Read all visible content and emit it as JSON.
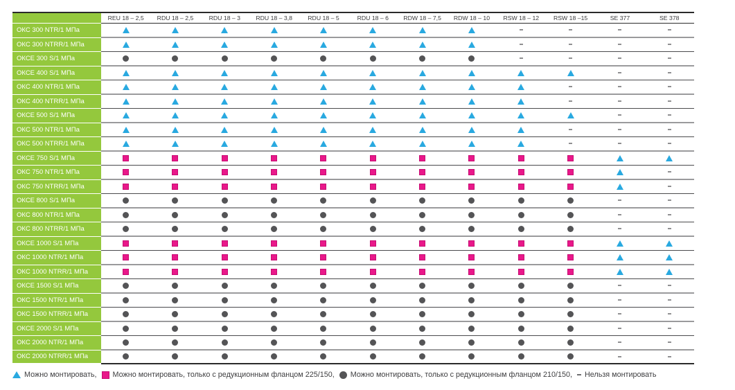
{
  "colors": {
    "row_header_green": "#94c83d",
    "triangle_blue": "#29a9e0",
    "square_magenta": "#e9188a",
    "circle_gray": "#545456",
    "header_text": "#3a3a3c",
    "legend_text": "#3e3e40"
  },
  "symbol_names": {
    "t": "triangle",
    "s": "square",
    "c": "circle",
    "-": "dash"
  },
  "table": {
    "columns": [
      "REU 18 – 2,5",
      "RDU 18 – 2,5",
      "RDU 18 – 3",
      "RDU 18 – 3,8",
      "RDU 18 – 5",
      "RDU 18 – 6",
      "RDW 18 – 7,5",
      "RDW 18 – 10",
      "RSW 18 – 12",
      "RSW 18 –15",
      "SE 377",
      "SE 378"
    ],
    "rows": [
      {
        "label": "ОКС 300 NTR/1 МПа",
        "cells": [
          "t",
          "t",
          "t",
          "t",
          "t",
          "t",
          "t",
          "t",
          "-",
          "-",
          "-",
          "-"
        ]
      },
      {
        "label": "ОКС 300 NTRR/1 МПа",
        "cells": [
          "t",
          "t",
          "t",
          "t",
          "t",
          "t",
          "t",
          "t",
          "-",
          "-",
          "-",
          "-"
        ]
      },
      {
        "label": "ОКСЕ 300 S/1 МПа",
        "cells": [
          "c",
          "c",
          "c",
          "c",
          "c",
          "c",
          "c",
          "c",
          "-",
          "-",
          "-",
          "-"
        ]
      },
      {
        "label": "ОКСЕ 400 S/1 МПа",
        "cells": [
          "t",
          "t",
          "t",
          "t",
          "t",
          "t",
          "t",
          "t",
          "t",
          "t",
          "-",
          "-"
        ]
      },
      {
        "label": "ОКС 400 NTR/1 МПа",
        "cells": [
          "t",
          "t",
          "t",
          "t",
          "t",
          "t",
          "t",
          "t",
          "t",
          "-",
          "-",
          "-"
        ]
      },
      {
        "label": "ОКС 400 NTRR/1 МПа",
        "cells": [
          "t",
          "t",
          "t",
          "t",
          "t",
          "t",
          "t",
          "t",
          "t",
          "-",
          "-",
          "-"
        ]
      },
      {
        "label": "ОКСЕ 500 S/1 МПа",
        "cells": [
          "t",
          "t",
          "t",
          "t",
          "t",
          "t",
          "t",
          "t",
          "t",
          "t",
          "-",
          "-"
        ]
      },
      {
        "label": "ОКС 500 NTR/1 МПа",
        "cells": [
          "t",
          "t",
          "t",
          "t",
          "t",
          "t",
          "t",
          "t",
          "t",
          "-",
          "-",
          "-"
        ]
      },
      {
        "label": "ОКС 500 NTRR/1 МПа",
        "cells": [
          "t",
          "t",
          "t",
          "t",
          "t",
          "t",
          "t",
          "t",
          "t",
          "-",
          "-",
          "-"
        ]
      },
      {
        "label": "ОКСЕ 750 S/1 МПа",
        "cells": [
          "s",
          "s",
          "s",
          "s",
          "s",
          "s",
          "s",
          "s",
          "s",
          "s",
          "t",
          "t"
        ]
      },
      {
        "label": "ОКС 750 NTR/1 МПа",
        "cells": [
          "s",
          "s",
          "s",
          "s",
          "s",
          "s",
          "s",
          "s",
          "s",
          "s",
          "t",
          "-"
        ]
      },
      {
        "label": "ОКС 750 NTRR/1 МПа",
        "cells": [
          "s",
          "s",
          "s",
          "s",
          "s",
          "s",
          "s",
          "s",
          "s",
          "s",
          "t",
          "-"
        ]
      },
      {
        "label": "ОКСЕ 800 S/1 МПа",
        "cells": [
          "c",
          "c",
          "c",
          "c",
          "c",
          "c",
          "c",
          "c",
          "c",
          "c",
          "-",
          "-"
        ]
      },
      {
        "label": "ОКС 800 NTR/1 МПа",
        "cells": [
          "c",
          "c",
          "c",
          "c",
          "c",
          "c",
          "c",
          "c",
          "c",
          "c",
          "-",
          "-"
        ]
      },
      {
        "label": "ОКС 800 NTRR/1 МПа",
        "cells": [
          "c",
          "c",
          "c",
          "c",
          "c",
          "c",
          "c",
          "c",
          "c",
          "c",
          "-",
          "-"
        ]
      },
      {
        "label": "ОКСЕ 1000 S/1 МПа",
        "cells": [
          "s",
          "s",
          "s",
          "s",
          "s",
          "s",
          "s",
          "s",
          "s",
          "s",
          "t",
          "t"
        ]
      },
      {
        "label": "ОКС 1000 NTR/1 МПа",
        "cells": [
          "s",
          "s",
          "s",
          "s",
          "s",
          "s",
          "s",
          "s",
          "s",
          "s",
          "t",
          "t"
        ]
      },
      {
        "label": "ОКС 1000 NTRR/1 МПа",
        "cells": [
          "s",
          "s",
          "s",
          "s",
          "s",
          "s",
          "s",
          "s",
          "s",
          "s",
          "t",
          "t"
        ]
      },
      {
        "label": "ОКСЕ 1500 S/1 МПа",
        "cells": [
          "c",
          "c",
          "c",
          "c",
          "c",
          "c",
          "c",
          "c",
          "c",
          "c",
          "-",
          "-"
        ]
      },
      {
        "label": "ОКС 1500 NTR/1 МПа",
        "cells": [
          "c",
          "c",
          "c",
          "c",
          "c",
          "c",
          "c",
          "c",
          "c",
          "c",
          "-",
          "-"
        ]
      },
      {
        "label": "ОКС 1500 NTRR/1 МПа",
        "cells": [
          "c",
          "c",
          "c",
          "c",
          "c",
          "c",
          "c",
          "c",
          "c",
          "c",
          "-",
          "-"
        ]
      },
      {
        "label": "ОКСЕ 2000 S/1 МПа",
        "cells": [
          "c",
          "c",
          "c",
          "c",
          "c",
          "c",
          "c",
          "c",
          "c",
          "c",
          "-",
          "-"
        ]
      },
      {
        "label": "ОКС 2000 NTR/1 МПа",
        "cells": [
          "c",
          "c",
          "c",
          "c",
          "c",
          "c",
          "c",
          "c",
          "c",
          "c",
          "-",
          "-"
        ]
      },
      {
        "label": "ОКС 2000 NTRR/1 МПа",
        "cells": [
          "c",
          "c",
          "c",
          "c",
          "c",
          "c",
          "c",
          "c",
          "c",
          "c",
          "-",
          "-"
        ]
      }
    ]
  },
  "legend": {
    "items": [
      {
        "symbol": "t",
        "label": "Можно монтировать,"
      },
      {
        "symbol": "s",
        "label": "Можно монтировать, только с редукционным фланцом 225/150,"
      },
      {
        "symbol": "c",
        "label": "Можно монтировать, только с редукционным фланцом 210/150,"
      },
      {
        "symbol": "-",
        "label": "Нельзя монтировать"
      }
    ]
  }
}
